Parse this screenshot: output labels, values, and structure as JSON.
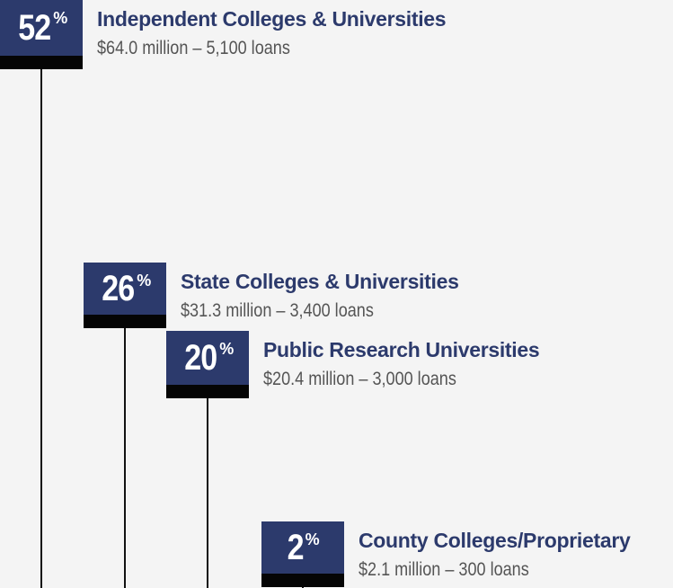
{
  "unit": "%",
  "items": [
    {
      "percent": 52,
      "label": "Independent Colleges & Universities",
      "detail": "$64.0 million – 5,100 loans"
    },
    {
      "percent": 26,
      "label": "State Colleges & Universities",
      "detail": "$31.3 million – 3,400 loans"
    },
    {
      "percent": 20,
      "label": "Public Research Universities",
      "detail": "$20.4 million – 3,000 loans"
    },
    {
      "percent": 2,
      "label": "County Colleges/Proprietary",
      "detail": "$2.1 million – 300 loans"
    }
  ]
}
